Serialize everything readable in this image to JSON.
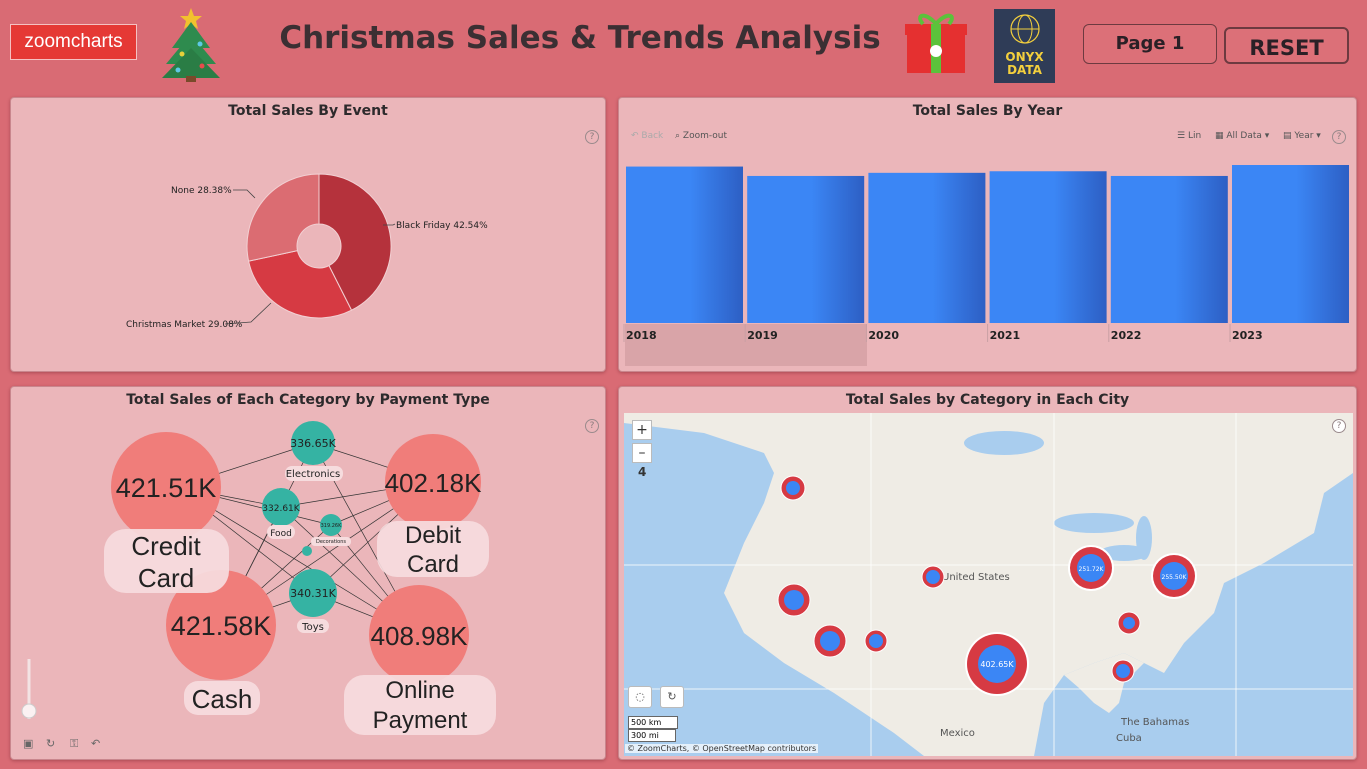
{
  "header": {
    "zc_logo": "zoomcharts",
    "title": "Christmas Sales & Trends Analysis",
    "onyx_logo_line1": "ONYX",
    "onyx_logo_line2": "DATA",
    "page_button": "Page 1",
    "reset_button": "RESET"
  },
  "event_panel": {
    "title": "Total Sales By Event",
    "help": "?",
    "chart_data": {
      "type": "pie",
      "slices": [
        {
          "label": "Black Friday",
          "pct": "42.54%",
          "value": 42.54,
          "color": "#b5323c"
        },
        {
          "label": "Christmas Market",
          "pct": "29.08%",
          "value": 29.08,
          "color": "#d63a43"
        },
        {
          "label": "None",
          "pct": "28.38%",
          "value": 28.38,
          "color": "#db6c72"
        }
      ]
    }
  },
  "year_panel": {
    "title": "Total Sales By Year",
    "help": "?",
    "toolbar": {
      "back": "Back",
      "zoom_out": "Zoom-out",
      "lin": "Lin",
      "all_data": "All Data",
      "year": "Year"
    },
    "chart_data": {
      "type": "bar",
      "categories": [
        "2018",
        "2019",
        "2020",
        "2021",
        "2022",
        "2023"
      ],
      "values": [
        1.0,
        0.94,
        0.96,
        0.97,
        0.94,
        1.01
      ],
      "note_values": "relative heights; axis unlabeled"
    }
  },
  "payment_panel": {
    "title": "Total Sales of Each Category by Payment Type",
    "help": "?",
    "payments": [
      {
        "value": "421.51K",
        "label1": "Credit",
        "label2": "Card"
      },
      {
        "value": "402.18K",
        "label1": "Debit",
        "label2": "Card"
      },
      {
        "value": "421.58K",
        "label1": "Cash",
        "label2": ""
      },
      {
        "value": "408.98K",
        "label1": "Online",
        "label2": "Payment"
      }
    ],
    "categories": [
      {
        "value": "336.65K",
        "label": "Electronics"
      },
      {
        "value": "332.61K",
        "label": "Food"
      },
      {
        "value": "319.26K",
        "label": "Decorations"
      },
      {
        "value": "340.31K",
        "label": "Toys"
      }
    ]
  },
  "map_panel": {
    "title": "Total Sales by Category in Each City",
    "help": "?",
    "zoom_in": "+",
    "zoom_out": "–",
    "zoom_level": "4",
    "labels": {
      "us": "United States",
      "mexico": "Mexico",
      "bahamas": "The Bahamas",
      "cuba": "Cuba"
    },
    "scale_km": "500 km",
    "scale_mi": "300 mi",
    "attribution": "© ZoomCharts, © OpenStreetMap contributors",
    "bubbles": [
      {
        "value": "402.65K"
      },
      {
        "value": "251.72K"
      },
      {
        "value": "255.50K"
      }
    ]
  }
}
